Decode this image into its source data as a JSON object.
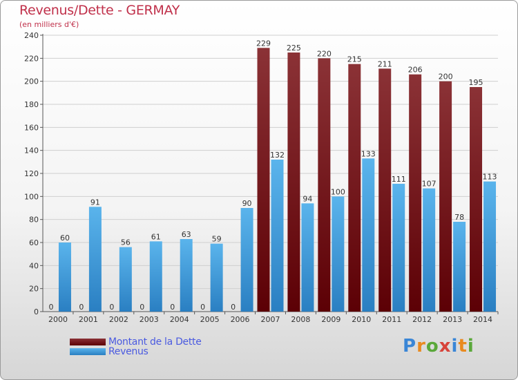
{
  "title": "Revenus/Dette - GERMAY",
  "subtitle": "(en milliers d'€)",
  "logo": "Proxiti",
  "colors": {
    "dette_top": "#8b3236",
    "dette_bottom": "#5c0005",
    "revenus_top": "#5ab4ec",
    "revenus_bottom": "#2a7fc2",
    "title": "#c0304a",
    "legend_text": "#4a5ae0"
  },
  "legend": {
    "dette": "Montant de la Dette",
    "revenus": "Revenus"
  },
  "chart_data": {
    "type": "bar",
    "categories": [
      "2000",
      "2001",
      "2002",
      "2003",
      "2004",
      "2005",
      "2006",
      "2007",
      "2008",
      "2009",
      "2010",
      "2011",
      "2012",
      "2013",
      "2014"
    ],
    "series": [
      {
        "name": "Montant de la Dette",
        "values": [
          0,
          0,
          0,
          0,
          0,
          0,
          0,
          229,
          225,
          220,
          215,
          211,
          206,
          200,
          195
        ]
      },
      {
        "name": "Revenus",
        "values": [
          60,
          91,
          56,
          61,
          63,
          59,
          90,
          132,
          94,
          100,
          133,
          111,
          107,
          78,
          113
        ]
      }
    ],
    "yticks": [
      0,
      20,
      40,
      60,
      80,
      100,
      120,
      140,
      160,
      180,
      200,
      220,
      240
    ],
    "ylim": [
      0,
      240
    ],
    "grid": true,
    "legend_position": "bottom-left"
  }
}
